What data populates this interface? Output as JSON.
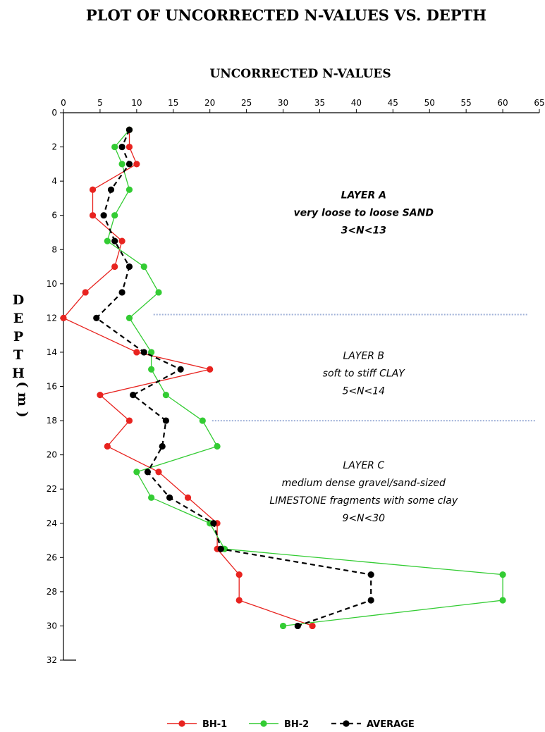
{
  "chart_data": {
    "type": "line",
    "title": "PLOT OF UNCORRECTED N-VALUES VS. DEPTH",
    "xlabel": "UNCORRECTED N-VALUES",
    "ylabel_letters": [
      "D",
      "E",
      "P",
      "T",
      "H"
    ],
    "ylabel_unit": "( m )",
    "x_axis_position": "top",
    "y_axis_inverted": true,
    "xlim": [
      0,
      65
    ],
    "ylim": [
      0,
      32
    ],
    "x_ticks": [
      0,
      5,
      10,
      15,
      20,
      25,
      30,
      35,
      40,
      45,
      50,
      55,
      60,
      65
    ],
    "y_ticks": [
      0,
      2,
      4,
      6,
      8,
      10,
      12,
      14,
      16,
      18,
      20,
      22,
      24,
      26,
      28,
      30,
      32
    ],
    "grid": false,
    "legend_position": "bottom",
    "series": [
      {
        "name": "BH-1",
        "color": "#e8231f",
        "dash": "solid",
        "points": [
          [
            9,
            1
          ],
          [
            9,
            2
          ],
          [
            10,
            3
          ],
          [
            4,
            4.5
          ],
          [
            4,
            6
          ],
          [
            8,
            7.5
          ],
          [
            7,
            9
          ],
          [
            3,
            10.5
          ],
          [
            0,
            12
          ],
          [
            10,
            14
          ],
          [
            20,
            15
          ],
          [
            5,
            16.5
          ],
          [
            9,
            18
          ],
          [
            6,
            19.5
          ],
          [
            13,
            21
          ],
          [
            17,
            22.5
          ],
          [
            21,
            24
          ],
          [
            21,
            25.5
          ],
          [
            24,
            27
          ],
          [
            24,
            28.5
          ],
          [
            34,
            30
          ]
        ]
      },
      {
        "name": "BH-2",
        "color": "#33cc33",
        "dash": "solid",
        "points": [
          [
            9,
            1
          ],
          [
            7,
            2
          ],
          [
            8,
            3
          ],
          [
            9,
            4.5
          ],
          [
            7,
            6
          ],
          [
            6,
            7.5
          ],
          [
            11,
            9
          ],
          [
            13,
            10.5
          ],
          [
            9,
            12
          ],
          [
            12,
            14
          ],
          [
            12,
            15
          ],
          [
            14,
            16.5
          ],
          [
            19,
            18
          ],
          [
            21,
            19.5
          ],
          [
            10,
            21
          ],
          [
            12,
            22.5
          ],
          [
            20,
            24
          ],
          [
            22,
            25.5
          ],
          [
            60,
            27
          ],
          [
            60,
            28.5
          ],
          [
            30,
            30
          ]
        ]
      },
      {
        "name": "AVERAGE",
        "color": "#000000",
        "dash": "dashed",
        "points": [
          [
            9,
            1
          ],
          [
            8,
            2
          ],
          [
            9,
            3
          ],
          [
            6.5,
            4.5
          ],
          [
            5.5,
            6
          ],
          [
            7,
            7.5
          ],
          [
            9,
            9
          ],
          [
            8,
            10.5
          ],
          [
            4.5,
            12
          ],
          [
            11,
            14
          ],
          [
            16,
            15
          ],
          [
            9.5,
            16.5
          ],
          [
            14,
            18
          ],
          [
            13.5,
            19.5
          ],
          [
            11.5,
            21
          ],
          [
            14.5,
            22.5
          ],
          [
            20.5,
            24
          ],
          [
            21.5,
            25.5
          ],
          [
            42,
            27
          ],
          [
            42,
            28.5
          ],
          [
            32,
            30
          ]
        ]
      }
    ],
    "boundaries": [
      {
        "depth": 11.8,
        "x_start": 12.3,
        "x_end": 63.5
      },
      {
        "depth": 18.0,
        "x_start": 20.3,
        "x_end": 64.5
      }
    ],
    "annotations": [
      {
        "x": 41,
        "depth": 5,
        "lines": [
          {
            "text": "LAYER A",
            "bold": true
          },
          {
            "text": "very loose to loose SAND",
            "bold": true
          },
          {
            "text": "3<N<13",
            "bold": true
          }
        ]
      },
      {
        "x": 41,
        "depth": 14.4,
        "lines": [
          {
            "text": "LAYER B",
            "bold": false
          },
          {
            "text": "soft to stiff CLAY",
            "bold": false
          },
          {
            "text": "5<N<14",
            "bold": false
          }
        ]
      },
      {
        "x": 41,
        "depth": 20.8,
        "lines": [
          {
            "text": "LAYER C",
            "bold": false
          },
          {
            "text": "medium dense gravel/sand-sized",
            "bold": false
          },
          {
            "text": "LIMESTONE fragments with some clay",
            "bold": false
          },
          {
            "text": "9<N<30",
            "bold": false
          }
        ]
      }
    ]
  }
}
